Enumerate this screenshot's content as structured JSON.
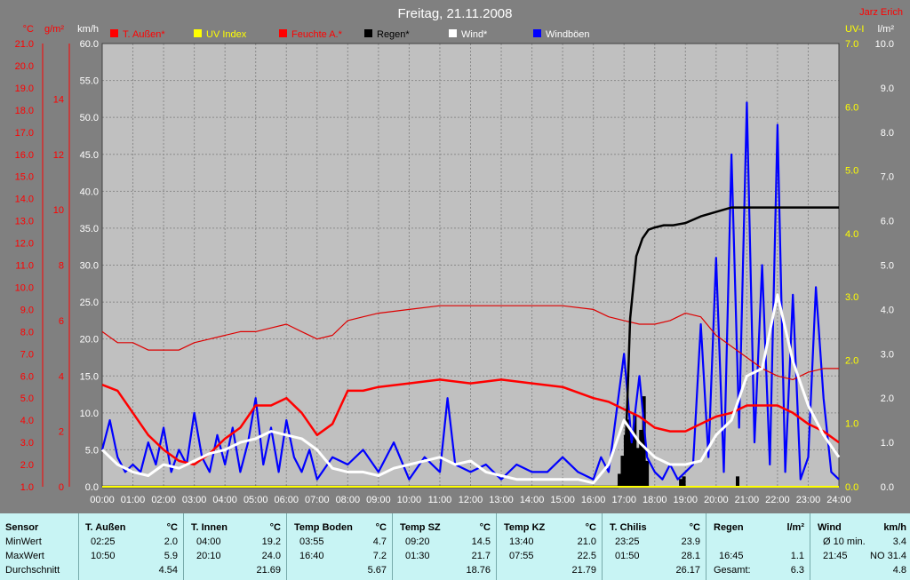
{
  "header": {
    "title": "Freitag, 21.11.2008",
    "author": "Jarz Erich"
  },
  "legend": [
    {
      "label": "T. Außen*",
      "swatch": "#ff0000",
      "text_color": "#ff0000"
    },
    {
      "label": "UV Index",
      "swatch": "#ffff00",
      "text_color": "#ffff00"
    },
    {
      "label": "Feuchte A.*",
      "swatch": "#ff0000",
      "text_color": "#ff0000"
    },
    {
      "label": "Regen*",
      "swatch": "#000000",
      "text_color": "#000000"
    },
    {
      "label": "Wind*",
      "swatch": "#ffffff",
      "text_color": "#ffffff"
    },
    {
      "label": "Windböen",
      "swatch": "#0000ff",
      "text_color": "#ffffff"
    }
  ],
  "colors": {
    "background": "#808080",
    "plot_bg": "#c0c0c0",
    "temp": "#ff0000",
    "humidity": "#dd0000",
    "uv": "#ffff00",
    "rain": "#000000",
    "wind": "#ffffff",
    "gusts": "#0000ff",
    "stats_bg": "#c8f4f4"
  },
  "chart_data": {
    "type": "line",
    "x_ticks": [
      "00:00",
      "01:00",
      "02:00",
      "03:00",
      "04:00",
      "05:00",
      "06:00",
      "07:00",
      "08:00",
      "09:00",
      "10:00",
      "11:00",
      "12:00",
      "13:00",
      "14:00",
      "15:00",
      "16:00",
      "17:00",
      "18:00",
      "19:00",
      "20:00",
      "21:00",
      "22:00",
      "23:00",
      "24:00"
    ],
    "axes": [
      {
        "unit": "°C",
        "color": "#ff0000",
        "range": [
          1.0,
          21.0
        ],
        "ticks": [
          "21.0",
          "20.0",
          "19.0",
          "18.0",
          "17.0",
          "16.0",
          "15.0",
          "14.0",
          "13.0",
          "12.0",
          "11.0",
          "10.0",
          "9.0",
          "8.0",
          "7.0",
          "6.0",
          "5.0",
          "4.0",
          "3.0",
          "2.0",
          "1.0"
        ]
      },
      {
        "unit": "g/m²",
        "color": "#ff0000",
        "range": [
          0,
          16
        ],
        "ticks": [
          "14",
          "12",
          "10",
          "8",
          "6",
          "4",
          "2",
          "0"
        ]
      },
      {
        "unit": "km/h",
        "color": "#ffffff",
        "range": [
          0,
          60
        ],
        "ticks": [
          "60.0",
          "55.0",
          "50.0",
          "45.0",
          "40.0",
          "35.0",
          "30.0",
          "25.0",
          "20.0",
          "15.0",
          "10.0",
          "5.0",
          "0.0"
        ]
      },
      {
        "unit": "UV-I",
        "color": "#ffff00",
        "range": [
          0,
          7
        ],
        "ticks": [
          "7.0",
          "6.0",
          "5.0",
          "4.0",
          "3.0",
          "2.0",
          "1.0",
          "0.0"
        ]
      },
      {
        "unit": "l/m²",
        "color": "#ffffff",
        "range": [
          0,
          10
        ],
        "ticks": [
          "10.0",
          "9.0",
          "8.0",
          "7.0",
          "6.0",
          "5.0",
          "4.0",
          "3.0",
          "2.0",
          "1.0",
          "0.0"
        ]
      }
    ],
    "series": [
      {
        "name": "T. Außen*",
        "axis": "km/h",
        "x_hours": [
          0,
          0.5,
          1,
          1.5,
          2,
          2.5,
          3,
          3.5,
          4,
          4.5,
          5,
          5.5,
          6,
          6.5,
          7,
          7.5,
          8,
          8.5,
          9,
          10,
          11,
          12,
          13,
          14,
          15,
          16,
          16.5,
          17,
          17.5,
          18,
          18.5,
          19,
          19.5,
          20,
          20.5,
          21,
          21.5,
          22,
          22.5,
          23,
          23.5,
          24
        ],
        "values": [
          13.8,
          13,
          10,
          7,
          5,
          3.5,
          3,
          4.5,
          6.5,
          8,
          11,
          11,
          12,
          10,
          7,
          8.5,
          13,
          13,
          13.5,
          14,
          14.5,
          14,
          14.5,
          14,
          13.5,
          12,
          11.5,
          10.5,
          9.5,
          8,
          7.5,
          7.5,
          8.5,
          9.5,
          10,
          11,
          11,
          11,
          10,
          8.5,
          7.5,
          6
        ]
      },
      {
        "name": "Feuchte A.*",
        "axis": "km/h",
        "x_hours": [
          0,
          0.5,
          1,
          1.5,
          2,
          2.5,
          3,
          3.5,
          4,
          4.5,
          5,
          5.5,
          6,
          6.5,
          7,
          7.5,
          8,
          8.5,
          9,
          10,
          11,
          12,
          13,
          14,
          15,
          16,
          16.5,
          17,
          17.5,
          18,
          18.5,
          19,
          19.5,
          20,
          20.5,
          21,
          21.5,
          22,
          22.5,
          23,
          23.5,
          24
        ],
        "values": [
          21,
          19.5,
          19.5,
          18.5,
          18.5,
          18.5,
          19.5,
          20,
          20.5,
          21,
          21,
          21.5,
          22,
          21,
          20,
          20.5,
          22.5,
          23,
          23.5,
          24,
          24.5,
          24.5,
          24.5,
          24.5,
          24.5,
          24,
          23,
          22.5,
          22,
          22,
          22.5,
          23.5,
          23,
          20.5,
          19,
          17.5,
          16,
          15,
          14.5,
          15.5,
          16,
          16
        ]
      },
      {
        "name": "Regen*",
        "axis": "l/m²",
        "x_hours": [
          0,
          16.5,
          16.8,
          17,
          17.1,
          17.2,
          17.4,
          17.6,
          17.8,
          18,
          18.3,
          18.6,
          19,
          19.5,
          20,
          20.5,
          21,
          22,
          23,
          24
        ],
        "values": [
          0,
          0,
          0,
          0.2,
          1.8,
          3.8,
          5.2,
          5.6,
          5.8,
          5.85,
          5.9,
          5.9,
          5.95,
          6.1,
          6.2,
          6.3,
          6.3,
          6.3,
          6.3,
          6.3
        ]
      },
      {
        "name": "Wind*",
        "axis": "km/h",
        "x_hours": [
          0,
          0.5,
          1,
          1.5,
          2,
          2.5,
          3,
          3.5,
          4,
          4.5,
          5,
          5.5,
          6,
          6.5,
          7,
          7.5,
          8,
          8.5,
          9,
          9.5,
          10,
          10.5,
          11,
          11.5,
          12,
          12.5,
          13,
          13.5,
          14,
          14.5,
          15,
          15.5,
          16,
          16.5,
          17,
          17.5,
          18,
          18.5,
          19,
          19.5,
          20,
          20.5,
          21,
          21.5,
          22,
          22.5,
          23,
          23.5,
          24
        ],
        "values": [
          5,
          3,
          2,
          1.5,
          3,
          2.5,
          3.5,
          4.5,
          5,
          6,
          6.5,
          7.5,
          7,
          6.5,
          5,
          2.5,
          2,
          2,
          1.5,
          2.5,
          3,
          3.5,
          4,
          3,
          3.5,
          2,
          1.5,
          1,
          1,
          1,
          1,
          1,
          0.5,
          3,
          9,
          6,
          4,
          3,
          3,
          3.5,
          7,
          9,
          15,
          16,
          26,
          17,
          11,
          7,
          4
        ]
      },
      {
        "name": "Windböen",
        "axis": "km/h",
        "x_hours": [
          0,
          0.25,
          0.5,
          0.75,
          1,
          1.25,
          1.5,
          1.75,
          2,
          2.25,
          2.5,
          2.75,
          3,
          3.25,
          3.5,
          3.75,
          4,
          4.25,
          4.5,
          4.75,
          5,
          5.25,
          5.5,
          5.75,
          6,
          6.25,
          6.5,
          6.75,
          7,
          7.5,
          8,
          8.5,
          9,
          9.5,
          10,
          10.5,
          11,
          11.25,
          11.5,
          12,
          12.5,
          13,
          13.5,
          14,
          14.5,
          15,
          15.5,
          16,
          16.25,
          16.5,
          16.75,
          17,
          17.25,
          17.5,
          17.75,
          18,
          18.25,
          18.5,
          18.75,
          19,
          19.25,
          19.5,
          19.75,
          20,
          20.25,
          20.5,
          20.75,
          21,
          21.25,
          21.5,
          21.75,
          22,
          22.25,
          22.5,
          22.75,
          23,
          23.25,
          23.5,
          23.75,
          24
        ],
        "values": [
          5,
          9,
          4,
          2,
          3,
          2,
          6,
          3,
          8,
          2,
          5,
          3,
          10,
          4,
          2,
          7,
          3,
          8,
          2,
          6,
          12,
          3,
          8,
          2,
          9,
          4,
          2,
          5,
          1,
          4,
          3,
          5,
          2,
          6,
          1,
          4,
          2,
          12,
          3,
          2,
          3,
          1,
          3,
          2,
          2,
          4,
          2,
          1,
          4,
          2,
          10,
          18,
          6,
          15,
          4,
          2,
          1,
          3,
          1,
          2,
          3,
          22,
          4,
          31,
          2,
          45,
          8,
          52,
          6,
          30,
          3,
          49,
          2,
          26,
          1,
          4,
          27,
          12,
          2,
          1
        ]
      },
      {
        "name": "UV Index",
        "axis": "UV-I",
        "x_hours": [
          0,
          24
        ],
        "values": [
          0,
          0
        ]
      }
    ]
  },
  "stats": {
    "labels": {
      "sensor": "Sensor",
      "min": "MinWert",
      "max": "MaxWert",
      "avg": "Durchschnitt"
    },
    "columns": [
      {
        "name": "T. Außen",
        "unit": "°C",
        "min_time": "02:25",
        "min_val": "2.0",
        "max_time": "10:50",
        "max_val": "5.9",
        "avg": "4.54"
      },
      {
        "name": "T. Innen",
        "unit": "°C",
        "min_time": "04:00",
        "min_val": "19.2",
        "max_time": "20:10",
        "max_val": "24.0",
        "avg": "21.69"
      },
      {
        "name": "Temp Boden",
        "unit": "°C",
        "min_time": "03:55",
        "min_val": "4.7",
        "max_time": "16:40",
        "max_val": "7.2",
        "avg": "5.67"
      },
      {
        "name": "Temp SZ",
        "unit": "°C",
        "min_time": "09:20",
        "min_val": "14.5",
        "max_time": "01:30",
        "max_val": "21.7",
        "avg": "18.76"
      },
      {
        "name": "Temp KZ",
        "unit": "°C",
        "min_time": "13:40",
        "min_val": "21.0",
        "max_time": "07:55",
        "max_val": "22.5",
        "avg": "21.79"
      },
      {
        "name": "T. Chilis",
        "unit": "°C",
        "min_time": "23:25",
        "min_val": "23.9",
        "max_time": "01:50",
        "max_val": "28.1",
        "avg": "26.17"
      }
    ],
    "rain": {
      "name": "Regen",
      "unit": "l/m²",
      "max_time": "16:45",
      "max_val": "1.1",
      "total_label": "Gesamt:",
      "total_val": "6.3"
    },
    "wind": {
      "name": "Wind",
      "unit": "km/h",
      "min_label": "Ø 10 min.",
      "min_val": "3.4",
      "max_time": "21:45",
      "max_val": "NO 31.4",
      "avg": "4.8"
    }
  }
}
